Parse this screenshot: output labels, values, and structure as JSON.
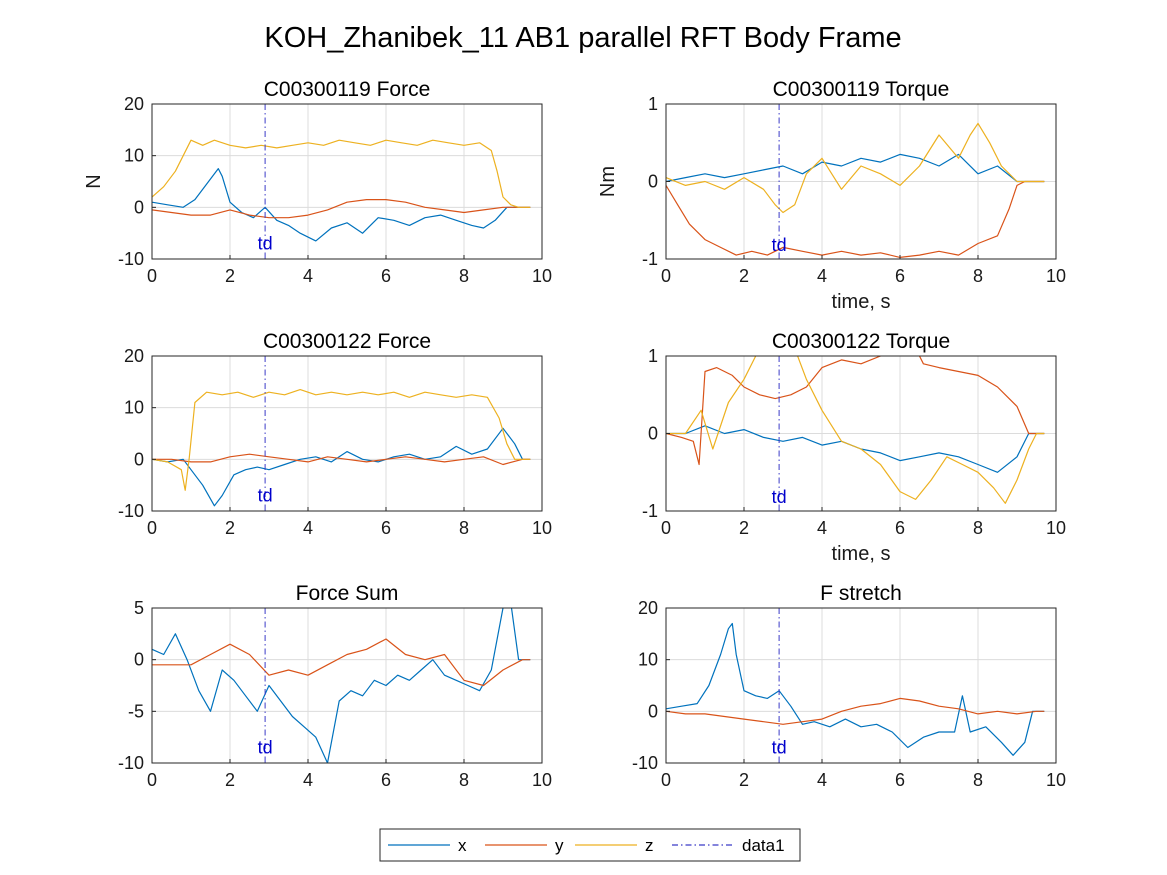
{
  "figure_title": "KOH_Zhanibek_11 AB1 parallel RFT Body Frame",
  "colors": {
    "x": "#0072BD",
    "y": "#D95319",
    "z": "#EDB120",
    "data1": "#3b3bc8"
  },
  "legend": {
    "placement": "bottom-center",
    "entries": [
      "x",
      "y",
      "z",
      "data1"
    ]
  },
  "chart_data": [
    {
      "type": "line",
      "title": "C00300119 Force",
      "xlabel": "",
      "ylabel": "N",
      "xlim": [
        0,
        10
      ],
      "ylim": [
        -10,
        20
      ],
      "xticks": [
        0,
        2,
        4,
        6,
        8,
        10
      ],
      "yticks": [
        -10,
        0,
        10,
        20
      ],
      "grid": true,
      "vline": {
        "name": "data1",
        "x": 2.9
      },
      "annotation": {
        "text": "td",
        "x": 2.9,
        "y": -7
      },
      "series": [
        {
          "name": "x",
          "x": [
            0,
            0.4,
            0.8,
            1.1,
            1.4,
            1.7,
            1.8,
            2.0,
            2.3,
            2.6,
            2.9,
            3.2,
            3.5,
            3.8,
            4.2,
            4.6,
            5.0,
            5.4,
            5.8,
            6.2,
            6.6,
            7.0,
            7.4,
            7.8,
            8.2,
            8.5,
            8.8,
            9.1,
            9.4,
            9.7
          ],
          "y": [
            1,
            0.5,
            0,
            1.5,
            4.5,
            7.5,
            6,
            1,
            -1,
            -2,
            0,
            -2.5,
            -3.5,
            -5,
            -6.5,
            -4,
            -3,
            -5,
            -2,
            -2.5,
            -3.5,
            -2,
            -1.5,
            -2.5,
            -3.5,
            -4,
            -2.5,
            0,
            0,
            0
          ]
        },
        {
          "name": "y",
          "x": [
            0,
            0.5,
            1.0,
            1.5,
            2.0,
            2.5,
            3.0,
            3.5,
            4.0,
            4.5,
            5.0,
            5.5,
            6.0,
            6.5,
            7.0,
            7.5,
            8.0,
            8.5,
            9.0,
            9.5,
            9.7
          ],
          "y": [
            -0.5,
            -1,
            -1.5,
            -1.5,
            -0.5,
            -1.5,
            -2,
            -2,
            -1.5,
            -0.5,
            1,
            1.5,
            1.5,
            1,
            0,
            -0.5,
            -1,
            -0.5,
            0,
            0,
            0
          ]
        },
        {
          "name": "z",
          "x": [
            0,
            0.3,
            0.6,
            0.8,
            1.0,
            1.3,
            1.6,
            2.0,
            2.4,
            2.8,
            3.2,
            3.6,
            4.0,
            4.4,
            4.8,
            5.2,
            5.6,
            6.0,
            6.4,
            6.8,
            7.2,
            7.6,
            8.0,
            8.4,
            8.7,
            8.85,
            9.0,
            9.2,
            9.4,
            9.7
          ],
          "y": [
            2,
            4,
            7,
            10,
            13,
            12,
            13,
            12,
            11.5,
            12,
            11.5,
            12,
            12.5,
            12,
            13,
            12.5,
            12,
            13,
            12.5,
            12,
            13,
            12.5,
            12,
            12.5,
            11,
            7,
            2,
            0.5,
            0,
            0
          ]
        }
      ]
    },
    {
      "type": "line",
      "title": "C00300119 Torque",
      "xlabel": "time, s",
      "ylabel": "Nm",
      "xlim": [
        0,
        10
      ],
      "ylim": [
        -1,
        1
      ],
      "xticks": [
        0,
        2,
        4,
        6,
        8,
        10
      ],
      "yticks": [
        -1,
        0,
        1
      ],
      "grid": true,
      "vline": {
        "name": "data1",
        "x": 2.9
      },
      "annotation": {
        "text": "td",
        "x": 2.9,
        "y": -0.82
      },
      "series": [
        {
          "name": "x",
          "x": [
            0,
            0.5,
            1.0,
            1.5,
            2.0,
            2.5,
            3.0,
            3.5,
            4.0,
            4.5,
            5.0,
            5.5,
            6.0,
            6.5,
            7.0,
            7.5,
            8.0,
            8.5,
            9.0,
            9.5,
            9.7
          ],
          "y": [
            0,
            0.05,
            0.1,
            0.05,
            0.1,
            0.15,
            0.2,
            0.1,
            0.25,
            0.2,
            0.3,
            0.25,
            0.35,
            0.3,
            0.2,
            0.35,
            0.1,
            0.2,
            0,
            0,
            0
          ]
        },
        {
          "name": "y",
          "x": [
            0,
            0.3,
            0.6,
            1.0,
            1.4,
            1.8,
            2.2,
            2.6,
            3.0,
            3.5,
            4.0,
            4.5,
            5.0,
            5.5,
            6.0,
            6.5,
            7.0,
            7.5,
            8.0,
            8.5,
            8.8,
            9.0,
            9.2,
            9.5,
            9.7
          ],
          "y": [
            -0.05,
            -0.3,
            -0.55,
            -0.75,
            -0.85,
            -0.95,
            -0.9,
            -0.95,
            -0.85,
            -0.9,
            -0.95,
            -0.9,
            -0.95,
            -0.92,
            -0.98,
            -0.95,
            -0.9,
            -0.95,
            -0.8,
            -0.7,
            -0.35,
            -0.05,
            0,
            0,
            0
          ]
        },
        {
          "name": "z",
          "x": [
            0,
            0.5,
            1.0,
            1.5,
            2.0,
            2.5,
            2.8,
            3.0,
            3.3,
            3.6,
            4.0,
            4.5,
            5.0,
            5.5,
            6.0,
            6.5,
            7.0,
            7.5,
            7.8,
            8.0,
            8.3,
            8.6,
            9.0,
            9.5,
            9.7
          ],
          "y": [
            0.05,
            -0.05,
            0,
            -0.1,
            0.05,
            -0.1,
            -0.3,
            -0.4,
            -0.3,
            0.1,
            0.3,
            -0.1,
            0.2,
            0.1,
            -0.05,
            0.2,
            0.6,
            0.3,
            0.6,
            0.75,
            0.5,
            0.2,
            0,
            0,
            0
          ]
        }
      ]
    },
    {
      "type": "line",
      "title": "C00300122 Force",
      "xlabel": "",
      "ylabel": "",
      "xlim": [
        0,
        10
      ],
      "ylim": [
        -10,
        20
      ],
      "xticks": [
        0,
        2,
        4,
        6,
        8,
        10
      ],
      "yticks": [
        -10,
        0,
        10,
        20
      ],
      "grid": true,
      "vline": {
        "name": "data1",
        "x": 2.9
      },
      "annotation": {
        "text": "td",
        "x": 2.9,
        "y": -7
      },
      "series": [
        {
          "name": "x",
          "x": [
            0,
            0.4,
            0.8,
            1.0,
            1.3,
            1.6,
            1.8,
            2.1,
            2.4,
            2.7,
            3.0,
            3.4,
            3.8,
            4.2,
            4.6,
            5.0,
            5.4,
            5.8,
            6.2,
            6.6,
            7.0,
            7.4,
            7.8,
            8.2,
            8.6,
            9.0,
            9.3,
            9.5,
            9.7
          ],
          "y": [
            0,
            -0.5,
            0,
            -2,
            -5,
            -9,
            -7,
            -3,
            -2,
            -1.5,
            -2,
            -1,
            0,
            0.5,
            -0.5,
            1.5,
            0,
            -0.5,
            0.5,
            1,
            0,
            0.5,
            2.5,
            1,
            2,
            6,
            3,
            0,
            0
          ]
        },
        {
          "name": "y",
          "x": [
            0,
            0.5,
            1.0,
            1.5,
            2.0,
            2.5,
            3.0,
            3.5,
            4.0,
            4.5,
            5.0,
            5.5,
            6.0,
            6.5,
            7.0,
            7.5,
            8.0,
            8.5,
            9.0,
            9.5,
            9.7
          ],
          "y": [
            0,
            0,
            -0.5,
            -0.5,
            0.5,
            1,
            0.5,
            0,
            -0.5,
            0.5,
            0,
            -0.5,
            0,
            0.5,
            0,
            -0.5,
            0,
            0.5,
            -1,
            0,
            0
          ]
        },
        {
          "name": "z",
          "x": [
            0,
            0.4,
            0.75,
            0.85,
            0.95,
            1.1,
            1.4,
            1.8,
            2.2,
            2.6,
            3.0,
            3.4,
            3.8,
            4.2,
            4.6,
            5.0,
            5.4,
            5.8,
            6.2,
            6.6,
            7.0,
            7.4,
            7.8,
            8.2,
            8.6,
            8.9,
            9.1,
            9.3,
            9.5,
            9.7
          ],
          "y": [
            0,
            -0.5,
            -2,
            -6,
            0,
            11,
            13,
            12.5,
            13,
            12,
            13,
            12.5,
            13.5,
            12.5,
            13,
            12.5,
            13,
            12.5,
            13,
            12,
            13,
            12.5,
            12,
            12.5,
            12,
            8,
            3,
            0,
            0,
            0
          ]
        }
      ]
    },
    {
      "type": "line",
      "title": "C00300122 Torque",
      "xlabel": "time, s",
      "ylabel": "",
      "xlim": [
        0,
        10
      ],
      "ylim": [
        -1,
        1
      ],
      "xticks": [
        0,
        2,
        4,
        6,
        8,
        10
      ],
      "yticks": [
        -1,
        0,
        1
      ],
      "grid": true,
      "vline": {
        "name": "data1",
        "x": 2.9
      },
      "annotation": {
        "text": "td",
        "x": 2.9,
        "y": -0.82
      },
      "series": [
        {
          "name": "x",
          "x": [
            0,
            0.5,
            1.0,
            1.5,
            2.0,
            2.5,
            3.0,
            3.5,
            4.0,
            4.5,
            5.0,
            5.5,
            6.0,
            6.5,
            7.0,
            7.5,
            8.0,
            8.5,
            9.0,
            9.3,
            9.5,
            9.7
          ],
          "y": [
            0,
            0,
            0.1,
            0,
            0.05,
            -0.05,
            -0.1,
            -0.05,
            -0.15,
            -0.1,
            -0.2,
            -0.25,
            -0.35,
            -0.3,
            -0.25,
            -0.3,
            -0.4,
            -0.5,
            -0.3,
            0,
            0,
            0
          ]
        },
        {
          "name": "y",
          "x": [
            0,
            0.4,
            0.7,
            0.85,
            1.0,
            1.3,
            1.7,
            2.0,
            2.4,
            2.8,
            3.2,
            3.6,
            4.0,
            4.5,
            5.0,
            5.5,
            6.0,
            6.3,
            6.6,
            7.0,
            7.5,
            8.0,
            8.5,
            9.0,
            9.3,
            9.5,
            9.7
          ],
          "y": [
            0,
            -0.05,
            -0.1,
            -0.4,
            0.8,
            0.85,
            0.75,
            0.6,
            0.5,
            0.45,
            0.5,
            0.6,
            0.85,
            0.95,
            0.9,
            1.0,
            1.05,
            1.2,
            0.9,
            0.85,
            0.8,
            0.75,
            0.6,
            0.35,
            0,
            0,
            0
          ]
        },
        {
          "name": "z",
          "x": [
            0,
            0.5,
            0.9,
            1.2,
            1.6,
            2.0,
            2.4,
            2.7,
            3.0,
            3.3,
            3.6,
            4.0,
            4.5,
            5.0,
            5.5,
            6.0,
            6.4,
            6.8,
            7.2,
            7.6,
            8.0,
            8.4,
            8.7,
            9.0,
            9.3,
            9.5,
            9.7
          ],
          "y": [
            0,
            0,
            0.3,
            -0.2,
            0.4,
            0.7,
            1.1,
            1.15,
            1.05,
            1.1,
            0.7,
            0.3,
            -0.1,
            -0.2,
            -0.4,
            -0.75,
            -0.85,
            -0.6,
            -0.3,
            -0.4,
            -0.5,
            -0.7,
            -0.9,
            -0.6,
            -0.2,
            0,
            0
          ]
        }
      ]
    },
    {
      "type": "line",
      "title": "Force Sum",
      "xlabel": "",
      "ylabel": "",
      "xlim": [
        0,
        10
      ],
      "ylim": [
        -10,
        5
      ],
      "xticks": [
        0,
        2,
        4,
        6,
        8,
        10
      ],
      "yticks": [
        -10,
        -5,
        0,
        5
      ],
      "grid": true,
      "vline": {
        "name": "data1",
        "x": 2.9
      },
      "annotation": {
        "text": "td",
        "x": 2.9,
        "y": -8.5
      },
      "series": [
        {
          "name": "x",
          "x": [
            0,
            0.3,
            0.6,
            0.9,
            1.2,
            1.5,
            1.8,
            2.1,
            2.4,
            2.7,
            3.0,
            3.3,
            3.6,
            3.9,
            4.2,
            4.5,
            4.8,
            5.1,
            5.4,
            5.7,
            6.0,
            6.3,
            6.6,
            6.9,
            7.2,
            7.5,
            7.8,
            8.1,
            8.4,
            8.7,
            9.0,
            9.2,
            9.4,
            9.7
          ],
          "y": [
            1,
            0.5,
            2.5,
            0,
            -3,
            -5,
            -1,
            -2,
            -3.5,
            -5,
            -2.5,
            -4,
            -5.5,
            -6.5,
            -7.5,
            -10,
            -4,
            -3,
            -3.5,
            -2,
            -2.5,
            -1.5,
            -2,
            -1,
            0,
            -1.5,
            -2,
            -2.5,
            -3,
            -1,
            5,
            5.5,
            0,
            0
          ]
        },
        {
          "name": "y",
          "x": [
            0,
            0.5,
            1.0,
            1.5,
            2.0,
            2.5,
            3.0,
            3.5,
            4.0,
            4.5,
            5.0,
            5.5,
            6.0,
            6.5,
            7.0,
            7.5,
            8.0,
            8.5,
            9.0,
            9.5,
            9.7
          ],
          "y": [
            -0.5,
            -0.5,
            -0.5,
            0.5,
            1.5,
            0.5,
            -1.5,
            -1,
            -1.5,
            -0.5,
            0.5,
            1,
            2,
            0.5,
            0,
            0.5,
            -2,
            -2.5,
            -1,
            0,
            0
          ]
        }
      ]
    },
    {
      "type": "line",
      "title": "F stretch",
      "xlabel": "",
      "ylabel": "",
      "xlim": [
        0,
        10
      ],
      "ylim": [
        -10,
        20
      ],
      "xticks": [
        0,
        2,
        4,
        6,
        8,
        10
      ],
      "yticks": [
        -10,
        0,
        10,
        20
      ],
      "grid": true,
      "vline": {
        "name": "data1",
        "x": 2.9
      },
      "annotation": {
        "text": "td",
        "x": 2.9,
        "y": -7
      },
      "series": [
        {
          "name": "x",
          "x": [
            0,
            0.4,
            0.8,
            1.1,
            1.4,
            1.6,
            1.7,
            1.8,
            2.0,
            2.3,
            2.6,
            2.9,
            3.2,
            3.5,
            3.8,
            4.2,
            4.6,
            5.0,
            5.4,
            5.8,
            6.2,
            6.6,
            7.0,
            7.4,
            7.6,
            7.8,
            8.2,
            8.6,
            8.9,
            9.2,
            9.4,
            9.7
          ],
          "y": [
            0.5,
            1,
            1.5,
            5,
            11,
            16,
            17,
            11,
            4,
            3,
            2.5,
            4,
            1,
            -2.5,
            -2,
            -3,
            -1.5,
            -3,
            -2.5,
            -4,
            -7,
            -5,
            -4,
            -4,
            3,
            -4,
            -3,
            -6,
            -8.5,
            -6,
            0,
            0
          ]
        },
        {
          "name": "y",
          "x": [
            0,
            0.5,
            1.0,
            1.5,
            2.0,
            2.5,
            3.0,
            3.5,
            4.0,
            4.5,
            5.0,
            5.5,
            6.0,
            6.5,
            7.0,
            7.5,
            8.0,
            8.5,
            9.0,
            9.5,
            9.7
          ],
          "y": [
            0,
            -0.5,
            -0.5,
            -1,
            -1.5,
            -2,
            -2.5,
            -2,
            -1.5,
            0,
            1,
            1.5,
            2.5,
            2,
            1,
            0.5,
            -0.5,
            0,
            -0.5,
            0,
            0
          ]
        }
      ]
    }
  ]
}
